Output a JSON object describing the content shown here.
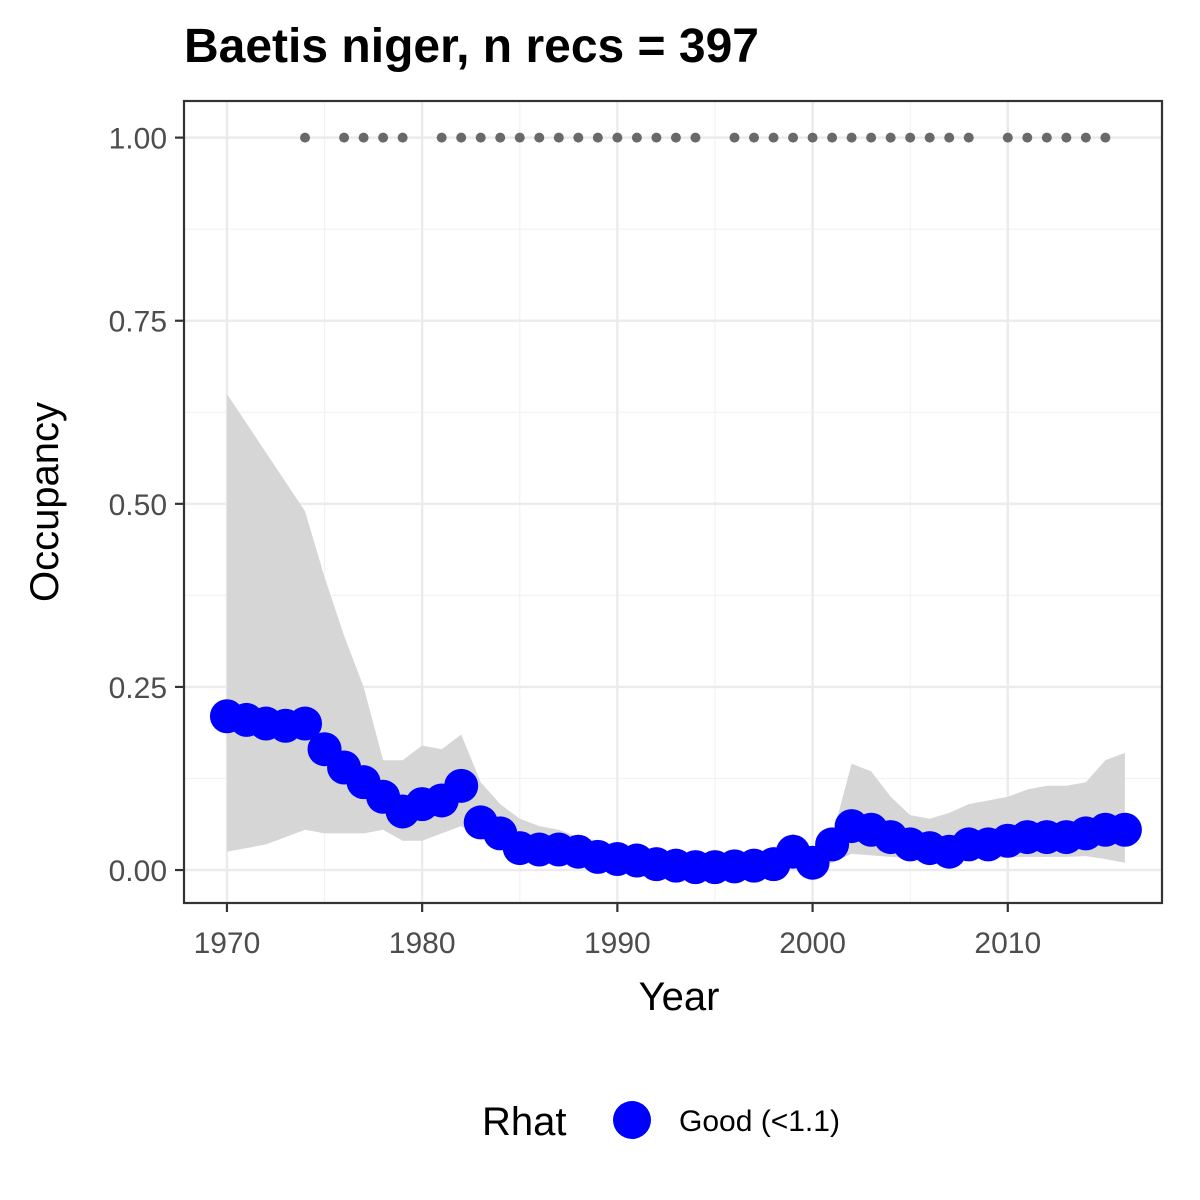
{
  "chart_data": {
    "type": "line",
    "title": "Baetis niger, n recs = 397",
    "xlabel": "Year",
    "ylabel": "Occupancy",
    "xlim": [
      1967.8,
      2017.9
    ],
    "ylim": [
      -0.045,
      1.05
    ],
    "x_ticks": [
      1970,
      1980,
      1990,
      2000,
      2010
    ],
    "x_tick_labels": [
      "1970",
      "1980",
      "1990",
      "2000",
      "2010"
    ],
    "y_ticks": [
      0,
      0.25,
      0.5,
      0.75,
      1
    ],
    "y_tick_labels": [
      "0.00",
      "0.25",
      "0.50",
      "0.75",
      "1.00"
    ],
    "grid": true,
    "legend": {
      "title": "Rhat",
      "placement": "bottom",
      "entries": [
        {
          "label": "Good (<1.1)",
          "color": "#0000ff"
        }
      ]
    },
    "series": [
      {
        "name": "Good (<1.1)",
        "color": "#0000ff",
        "x": [
          1970,
          1971,
          1972,
          1973,
          1974,
          1975,
          1976,
          1977,
          1978,
          1979,
          1980,
          1981,
          1982,
          1983,
          1984,
          1985,
          1986,
          1987,
          1988,
          1989,
          1990,
          1991,
          1992,
          1993,
          1994,
          1995,
          1996,
          1997,
          1998,
          1999,
          2000,
          2001,
          2002,
          2003,
          2004,
          2005,
          2006,
          2007,
          2008,
          2009,
          2010,
          2011,
          2012,
          2013,
          2014,
          2015,
          2016
        ],
        "y": [
          0.21,
          0.205,
          0.2,
          0.197,
          0.2,
          0.165,
          0.14,
          0.12,
          0.1,
          0.08,
          0.09,
          0.095,
          0.115,
          0.065,
          0.05,
          0.03,
          0.028,
          0.028,
          0.025,
          0.018,
          0.015,
          0.013,
          0.008,
          0.006,
          0.004,
          0.004,
          0.005,
          0.006,
          0.008,
          0.025,
          0.01,
          0.035,
          0.06,
          0.055,
          0.045,
          0.035,
          0.03,
          0.025,
          0.035,
          0.035,
          0.04,
          0.045,
          0.045,
          0.045,
          0.05,
          0.055,
          0.055
        ],
        "lower": [
          0.025,
          0.03,
          0.035,
          0.045,
          0.055,
          0.05,
          0.05,
          0.05,
          0.055,
          0.04,
          0.04,
          0.05,
          0.06,
          0.045,
          0.035,
          0.025,
          0.02,
          0.015,
          0.01,
          0.008,
          0.006,
          0.004,
          0.003,
          0.002,
          0.002,
          0.002,
          0.002,
          0.002,
          0.003,
          0.005,
          0.004,
          0.01,
          0.022,
          0.02,
          0.018,
          0.016,
          0.015,
          0.014,
          0.016,
          0.016,
          0.017,
          0.018,
          0.018,
          0.018,
          0.019,
          0.015,
          0.01
        ],
        "upper": [
          0.65,
          0.61,
          0.57,
          0.53,
          0.49,
          0.4,
          0.32,
          0.25,
          0.15,
          0.15,
          0.17,
          0.165,
          0.185,
          0.12,
          0.09,
          0.07,
          0.06,
          0.055,
          0.045,
          0.04,
          0.035,
          0.03,
          0.025,
          0.02,
          0.018,
          0.018,
          0.02,
          0.022,
          0.03,
          0.05,
          0.03,
          0.045,
          0.145,
          0.135,
          0.1,
          0.075,
          0.07,
          0.078,
          0.09,
          0.095,
          0.1,
          0.11,
          0.115,
          0.115,
          0.12,
          0.15,
          0.16
        ]
      },
      {
        "name": "",
        "color": "#696969",
        "x": [
          1974,
          1976,
          1977,
          1978,
          1979,
          1981,
          1982,
          1983,
          1984,
          1985,
          1986,
          1987,
          1988,
          1989,
          1990,
          1991,
          1992,
          1993,
          1994,
          1996,
          1997,
          1998,
          1999,
          2000,
          2001,
          2002,
          2003,
          2004,
          2005,
          2006,
          2007,
          2008,
          2010,
          2011,
          2012,
          2013,
          2014,
          2015
        ],
        "y": [
          1,
          1,
          1,
          1,
          1,
          1,
          1,
          1,
          1,
          1,
          1,
          1,
          1,
          1,
          1,
          1,
          1,
          1,
          1,
          1,
          1,
          1,
          1,
          1,
          1,
          1,
          1,
          1,
          1,
          1,
          1,
          1,
          1,
          1,
          1,
          1,
          1,
          1
        ]
      }
    ]
  }
}
